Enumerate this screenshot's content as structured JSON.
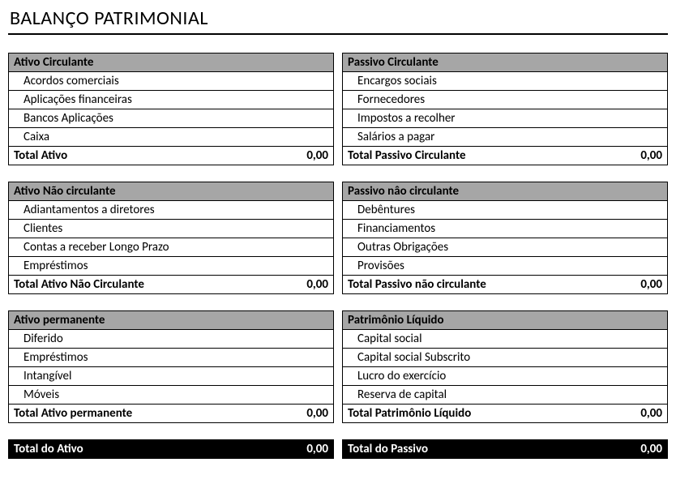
{
  "title": "BALANÇO PATRIMONIAL",
  "colors": {
    "section_bg": "#a6a6a6",
    "grand_bg": "#000000",
    "grand_fg": "#ffffff",
    "border": "#000000",
    "text": "#000000",
    "page_bg": "#ffffff"
  },
  "typography": {
    "title_fontsize_pt": 18,
    "body_fontsize_pt": 11,
    "font_family": "Calibri"
  },
  "left": {
    "sections": [
      {
        "header": "Ativo Circulante",
        "items": [
          "Acordos comerciais",
          "Aplicações financeiras",
          "Bancos Aplicações",
          "Caixa"
        ],
        "total_label": "Total Ativo",
        "total_value": "0,00"
      },
      {
        "header": "Ativo Não circulante",
        "items": [
          "Adiantamentos a diretores",
          "Clientes",
          "Contas a receber Longo Prazo",
          "Empréstimos"
        ],
        "total_label": "Total Ativo Não Circulante",
        "total_value": "0,00"
      },
      {
        "header": "Ativo permanente",
        "items": [
          "Diferido",
          "Empréstimos",
          "Intangível",
          "Móveis"
        ],
        "total_label": "Total Ativo permanente",
        "total_value": "0,00"
      }
    ],
    "grand_label": "Total do Ativo",
    "grand_value": "0,00"
  },
  "right": {
    "sections": [
      {
        "header": "Passivo Circulante",
        "items": [
          "Encargos sociais",
          "Fornecedores",
          "Impostos a recolher",
          "Salários a pagar"
        ],
        "total_label": "Total Passivo Circulante",
        "total_value": "0,00"
      },
      {
        "header": "Passivo nâo circulante",
        "items": [
          "Debêntures",
          "Financiamentos",
          "Outras Obrigações",
          "Provisões"
        ],
        "total_label": "Total Passivo não circulante",
        "total_value": "0,00"
      },
      {
        "header": "Patrimônio Líquido",
        "items": [
          "Capital social",
          "Capital social Subscrito",
          "Lucro do exercício",
          "Reserva de capital"
        ],
        "total_label": "Total Patrimônio Líquido",
        "total_value": "0,00"
      }
    ],
    "grand_label": "Total do Passivo",
    "grand_value": "0,00"
  }
}
